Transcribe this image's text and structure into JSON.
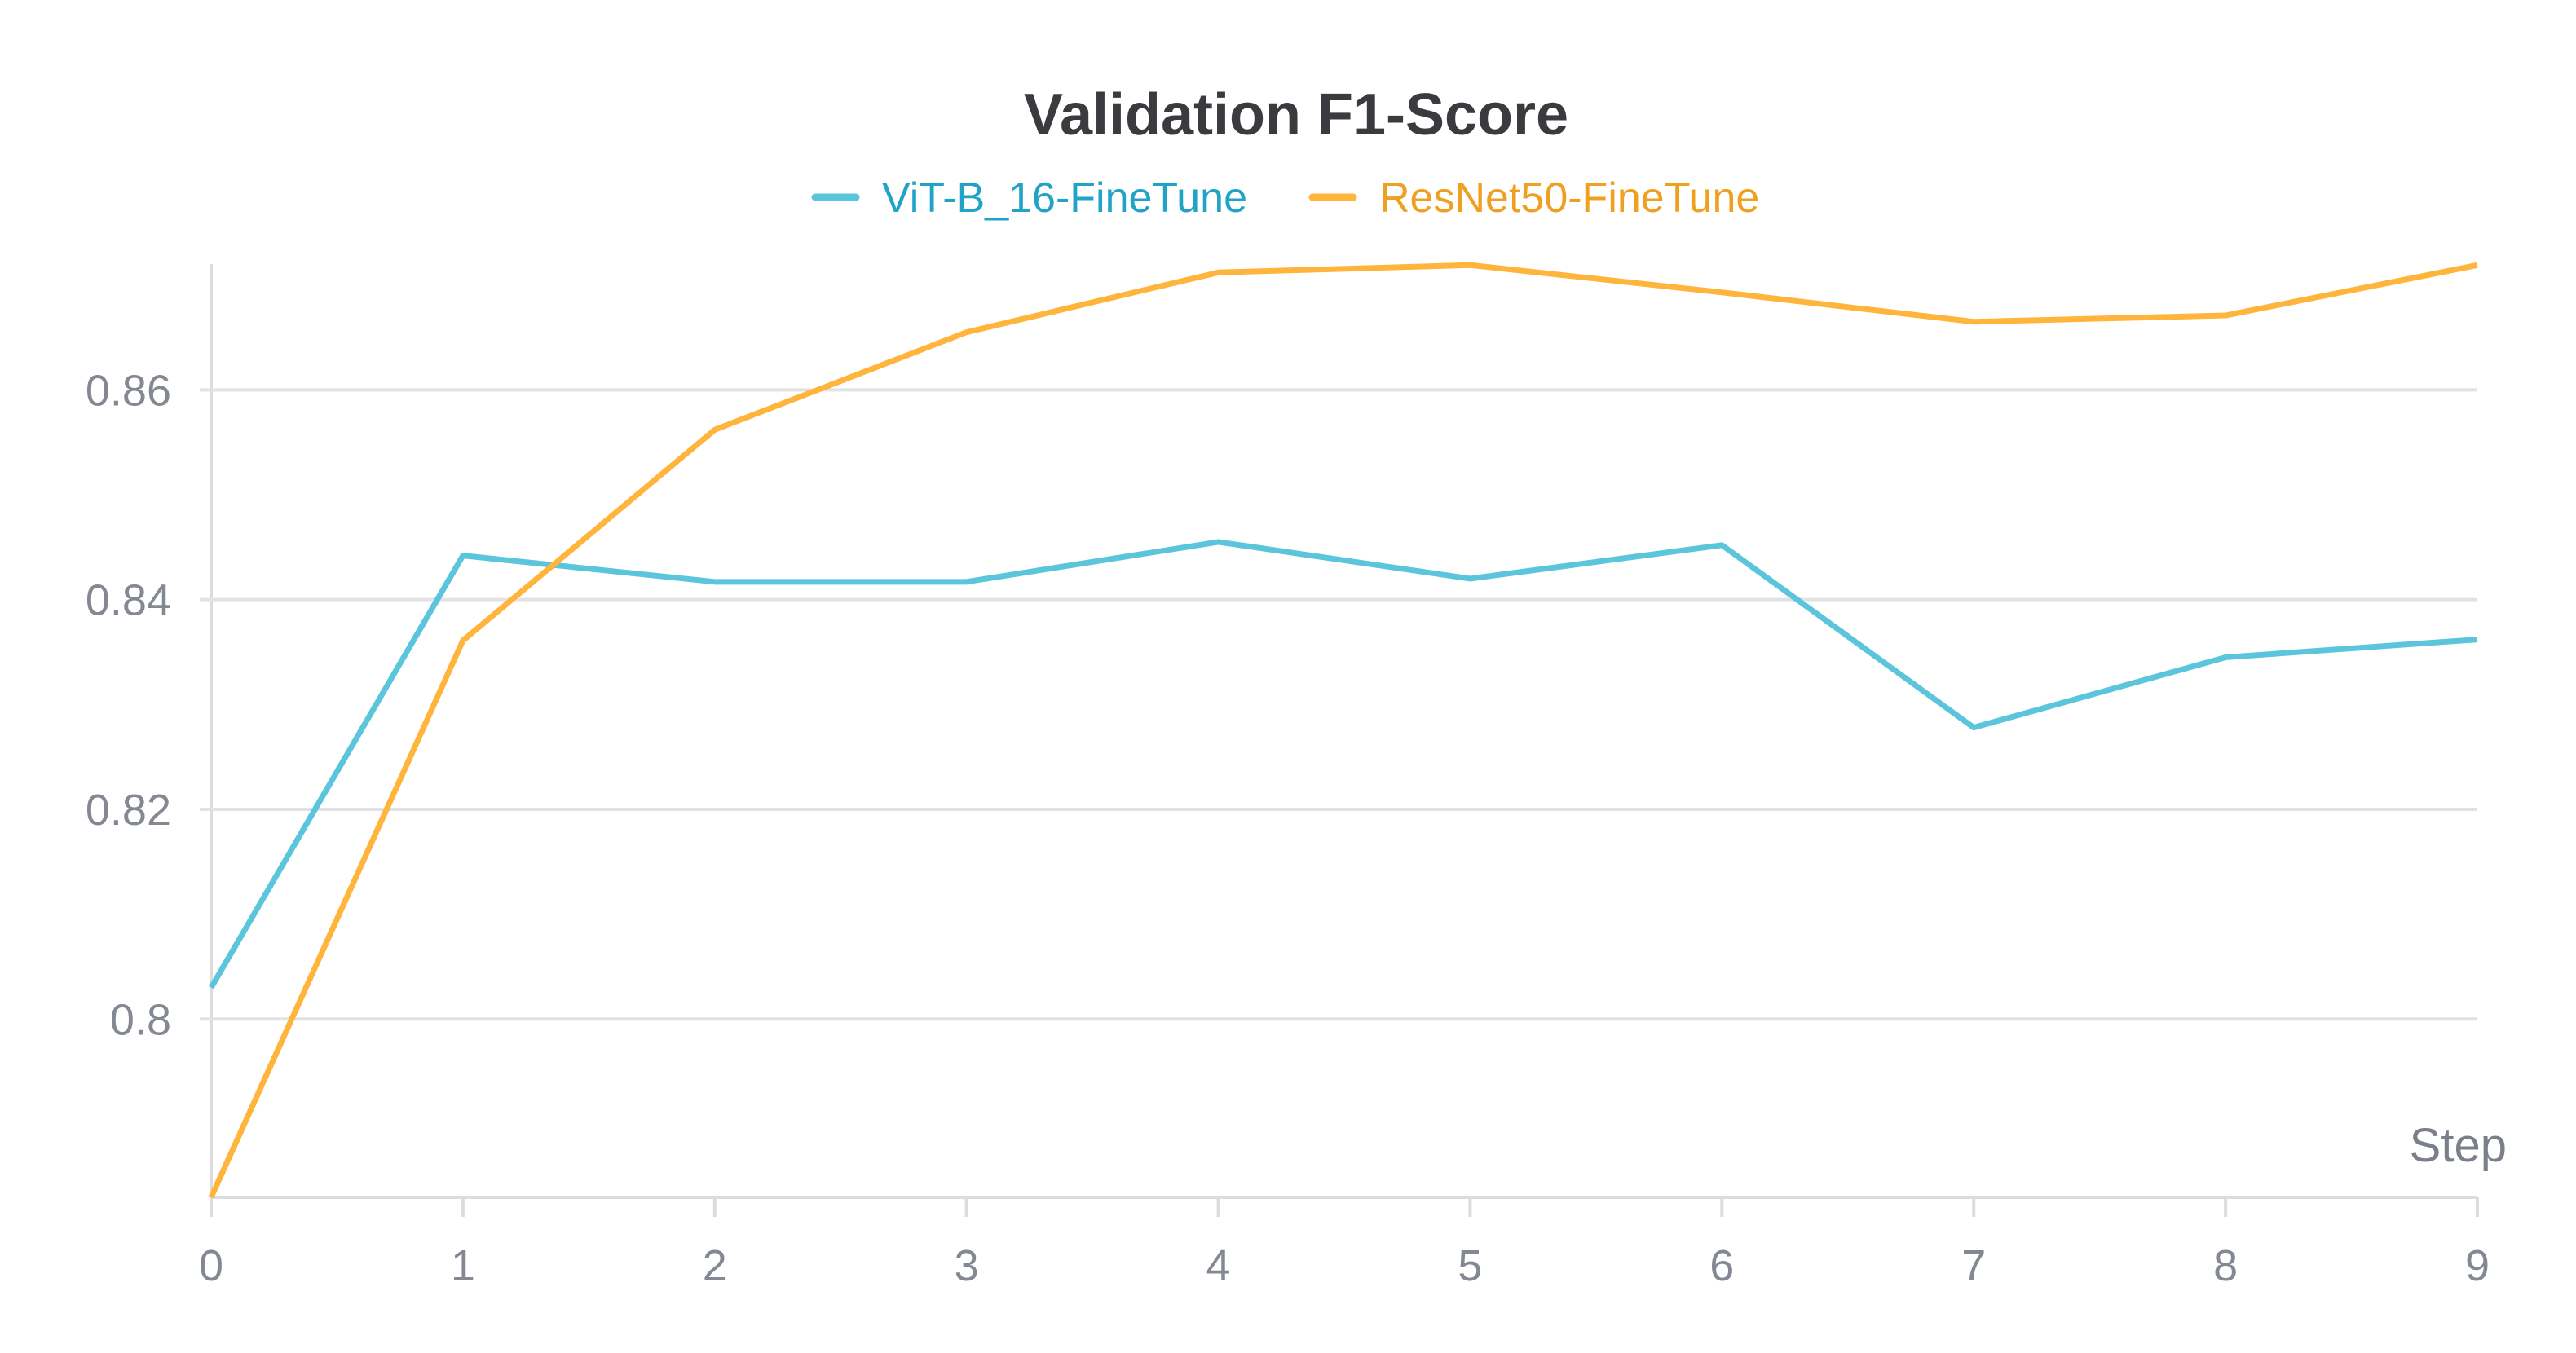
{
  "chart_data": {
    "type": "line",
    "title": "Validation F1-Score",
    "xlabel": "Step",
    "ylabel": "",
    "x": [
      0,
      1,
      2,
      3,
      4,
      5,
      6,
      7,
      8,
      9
    ],
    "xticks": [
      "0",
      "1",
      "2",
      "3",
      "4",
      "5",
      "6",
      "7",
      "8",
      "9"
    ],
    "yticks": [
      0.8,
      0.82,
      0.84,
      0.86
    ],
    "ytick_labels": [
      "0.8",
      "0.82",
      "0.84",
      "0.86"
    ],
    "xlim": [
      0,
      9
    ],
    "ylim": [
      0.783,
      0.872
    ],
    "grid": true,
    "legend_position": "top-center",
    "series": [
      {
        "name": "ViT-B_16-FineTune",
        "color": "#5bc5db",
        "label_color": "#1fa3c6",
        "values": [
          0.803,
          0.8442,
          0.8417,
          0.8417,
          0.8455,
          0.842,
          0.8452,
          0.8278,
          0.8345,
          0.8362
        ]
      },
      {
        "name": "ResNet50-FineTune",
        "color": "#ffb43b",
        "label_color": "#f0a020",
        "values": [
          0.783,
          0.8361,
          0.8562,
          0.8655,
          0.8712,
          0.8719,
          0.8693,
          0.8665,
          0.8671,
          0.8719
        ]
      }
    ]
  }
}
